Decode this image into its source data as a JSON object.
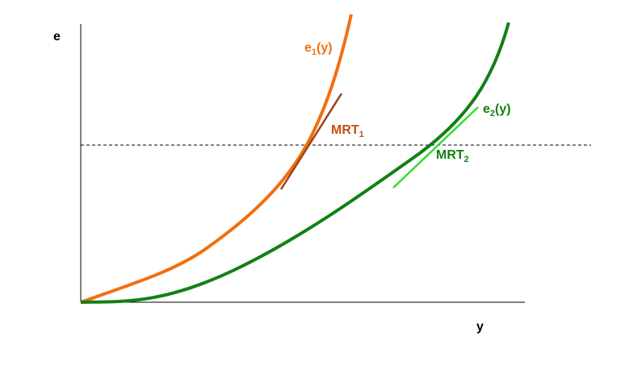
{
  "axes": {
    "y_label": "e",
    "x_label": "y"
  },
  "curves": [
    {
      "label": {
        "base": "e",
        "sub": "1",
        "suffix": "(y)"
      }
    },
    {
      "label": {
        "base": "e",
        "sub": "2",
        "suffix": "(y)"
      }
    }
  ],
  "tangents": [
    {
      "label": {
        "base": "MRT",
        "sub": "1"
      }
    },
    {
      "label": {
        "base": "MRT",
        "sub": "2"
      }
    }
  ]
}
